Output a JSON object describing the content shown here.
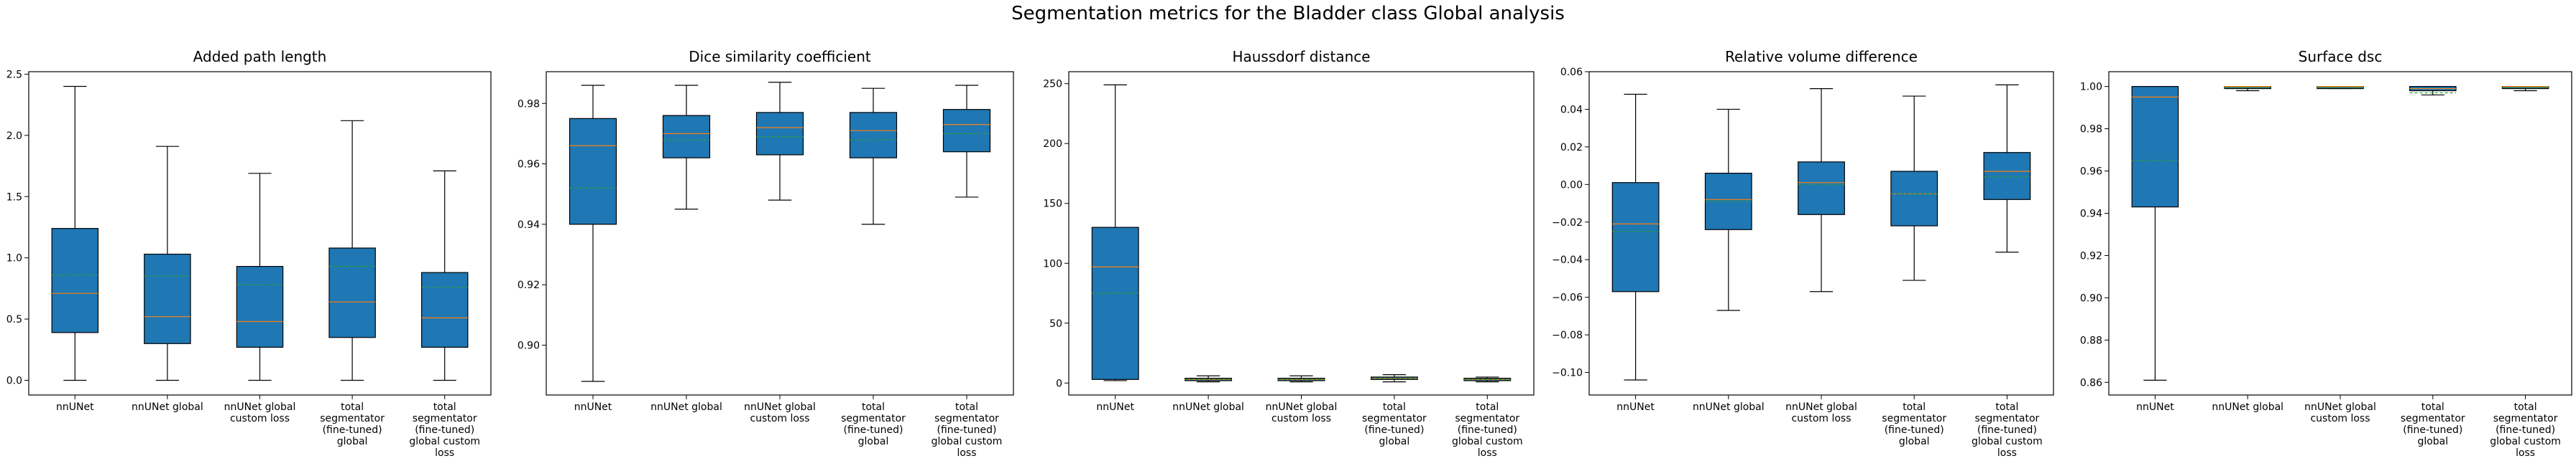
{
  "suptitle": "Segmentation metrics for the Bladder class Global analysis",
  "style": {
    "box_fill": "#1f77b4",
    "median_color": "#ff7f0e",
    "mean_color": "#2ca02c",
    "edge_color": "#000000"
  },
  "chart_data": [
    {
      "type": "box",
      "title": "Added path length",
      "categories": [
        [
          "nnUNet"
        ],
        [
          "nnUNet global"
        ],
        [
          "nnUNet global",
          "custom loss"
        ],
        [
          "total",
          "segmentator",
          "(fine-tuned)",
          "global"
        ],
        [
          "total",
          "segmentator",
          "(fine-tuned)",
          "global custom",
          "loss"
        ]
      ],
      "ylim": [
        -0.12,
        2.52
      ],
      "yticks": [
        0.0,
        0.5,
        1.0,
        1.5,
        2.0,
        2.5
      ],
      "ytick_labels": [
        "0.0",
        "0.5",
        "1.0",
        "1.5",
        "2.0",
        "2.5"
      ],
      "boxes": [
        {
          "whislo": 0.0,
          "q1": 0.39,
          "med": 0.71,
          "mean": 0.86,
          "q3": 1.24,
          "whishi": 2.4
        },
        {
          "whislo": 0.0,
          "q1": 0.3,
          "med": 0.52,
          "mean": 0.85,
          "q3": 1.03,
          "whishi": 1.91
        },
        {
          "whislo": 0.0,
          "q1": 0.27,
          "med": 0.48,
          "mean": 0.78,
          "q3": 0.93,
          "whishi": 1.69
        },
        {
          "whislo": 0.0,
          "q1": 0.35,
          "med": 0.64,
          "mean": 0.93,
          "q3": 1.08,
          "whishi": 2.12
        },
        {
          "whislo": 0.0,
          "q1": 0.27,
          "med": 0.51,
          "mean": 0.76,
          "q3": 0.88,
          "whishi": 1.71
        }
      ]
    },
    {
      "type": "box",
      "title": "Dice similarity coefficient",
      "categories": [
        [
          "nnUNet"
        ],
        [
          "nnUNet global"
        ],
        [
          "nnUNet global",
          "custom loss"
        ],
        [
          "total",
          "segmentator",
          "(fine-tuned)",
          "global"
        ],
        [
          "total",
          "segmentator",
          "(fine-tuned)",
          "global custom",
          "loss"
        ]
      ],
      "ylim": [
        0.8835,
        0.9905
      ],
      "yticks": [
        0.9,
        0.92,
        0.94,
        0.96,
        0.98
      ],
      "ytick_labels": [
        "0.90",
        "0.92",
        "0.94",
        "0.96",
        "0.98"
      ],
      "boxes": [
        {
          "whislo": 0.888,
          "q1": 0.94,
          "med": 0.966,
          "mean": 0.952,
          "q3": 0.975,
          "whishi": 0.986
        },
        {
          "whislo": 0.945,
          "q1": 0.962,
          "med": 0.97,
          "mean": 0.968,
          "q3": 0.976,
          "whishi": 0.986
        },
        {
          "whislo": 0.948,
          "q1": 0.963,
          "med": 0.972,
          "mean": 0.969,
          "q3": 0.977,
          "whishi": 0.987
        },
        {
          "whislo": 0.94,
          "q1": 0.962,
          "med": 0.971,
          "mean": 0.968,
          "q3": 0.977,
          "whishi": 0.985
        },
        {
          "whislo": 0.949,
          "q1": 0.964,
          "med": 0.973,
          "mean": 0.97,
          "q3": 0.978,
          "whishi": 0.986
        }
      ]
    },
    {
      "type": "box",
      "title": "Haussdorf distance",
      "categories": [
        [
          "nnUNet"
        ],
        [
          "nnUNet global"
        ],
        [
          "nnUNet global",
          "custom loss"
        ],
        [
          "total",
          "segmentator",
          "(fine-tuned)",
          "global"
        ],
        [
          "total",
          "segmentator",
          "(fine-tuned)",
          "global custom",
          "loss"
        ]
      ],
      "ylim": [
        -10,
        260
      ],
      "yticks": [
        0,
        50,
        100,
        150,
        200,
        250
      ],
      "ytick_labels": [
        "0",
        "50",
        "100",
        "150",
        "200",
        "250"
      ],
      "boxes": [
        {
          "whislo": 2.0,
          "q1": 3.0,
          "med": 97.0,
          "mean": 75.0,
          "q3": 130.0,
          "whishi": 249.0
        },
        {
          "whislo": 1.0,
          "q1": 2.0,
          "med": 3.0,
          "mean": 3.0,
          "q3": 4.0,
          "whishi": 6.0
        },
        {
          "whislo": 1.0,
          "q1": 2.0,
          "med": 3.0,
          "mean": 3.0,
          "q3": 4.0,
          "whishi": 6.0
        },
        {
          "whislo": 1.0,
          "q1": 3.0,
          "med": 4.0,
          "mean": 4.0,
          "q3": 5.0,
          "whishi": 7.0
        },
        {
          "whislo": 1.0,
          "q1": 2.0,
          "med": 3.0,
          "mean": 3.0,
          "q3": 4.0,
          "whishi": 5.0
        }
      ]
    },
    {
      "type": "box",
      "title": "Relative volume difference",
      "categories": [
        [
          "nnUNet"
        ],
        [
          "nnUNet global"
        ],
        [
          "nnUNet global",
          "custom loss"
        ],
        [
          "total",
          "segmentator",
          "(fine-tuned)",
          "global"
        ],
        [
          "total",
          "segmentator",
          "(fine-tuned)",
          "global custom",
          "loss"
        ]
      ],
      "ylim": [
        -0.112,
        0.06
      ],
      "yticks": [
        -0.1,
        -0.08,
        -0.06,
        -0.04,
        -0.02,
        0.0,
        0.02,
        0.04,
        0.06
      ],
      "ytick_labels": [
        "−0.10",
        "−0.08",
        "−0.06",
        "−0.04",
        "−0.02",
        "0.00",
        "0.02",
        "0.04",
        "0.06"
      ],
      "boxes": [
        {
          "whislo": -0.104,
          "q1": -0.057,
          "med": -0.021,
          "mean": -0.025,
          "q3": 0.001,
          "whishi": 0.048
        },
        {
          "whislo": -0.067,
          "q1": -0.024,
          "med": -0.008,
          "mean": -0.009,
          "q3": 0.006,
          "whishi": 0.04
        },
        {
          "whislo": -0.057,
          "q1": -0.016,
          "med": 0.001,
          "mean": 0.0,
          "q3": 0.012,
          "whishi": 0.051
        },
        {
          "whislo": -0.051,
          "q1": -0.022,
          "med": -0.005,
          "mean": -0.005,
          "q3": 0.007,
          "whishi": 0.047
        },
        {
          "whislo": -0.036,
          "q1": -0.008,
          "med": 0.007,
          "mean": 0.004,
          "q3": 0.017,
          "whishi": 0.053
        }
      ]
    },
    {
      "type": "box",
      "title": "Surface dsc",
      "categories": [
        [
          "nnUNet"
        ],
        [
          "nnUNet global"
        ],
        [
          "nnUNet global",
          "custom loss"
        ],
        [
          "total",
          "segmentator",
          "(fine-tuned)",
          "global"
        ],
        [
          "total",
          "segmentator",
          "(fine-tuned)",
          "global custom",
          "loss"
        ]
      ],
      "ylim": [
        0.854,
        1.007
      ],
      "yticks": [
        0.86,
        0.88,
        0.9,
        0.92,
        0.94,
        0.96,
        0.98,
        1.0
      ],
      "ytick_labels": [
        "0.86",
        "0.88",
        "0.90",
        "0.92",
        "0.94",
        "0.96",
        "0.98",
        "1.00"
      ],
      "boxes": [
        {
          "whislo": 0.861,
          "q1": 0.943,
          "med": 0.995,
          "mean": 0.965,
          "q3": 1.0,
          "whishi": 1.0
        },
        {
          "whislo": 0.998,
          "q1": 0.999,
          "med": 1.0,
          "mean": 0.9995,
          "q3": 1.0,
          "whishi": 1.0
        },
        {
          "whislo": 0.999,
          "q1": 0.999,
          "med": 1.0,
          "mean": 0.9995,
          "q3": 1.0,
          "whishi": 1.0
        },
        {
          "whislo": 0.996,
          "q1": 0.998,
          "med": 0.999,
          "mean": 0.997,
          "q3": 1.0,
          "whishi": 1.0
        },
        {
          "whislo": 0.998,
          "q1": 0.999,
          "med": 1.0,
          "mean": 0.9995,
          "q3": 1.0,
          "whishi": 1.0
        }
      ]
    }
  ]
}
